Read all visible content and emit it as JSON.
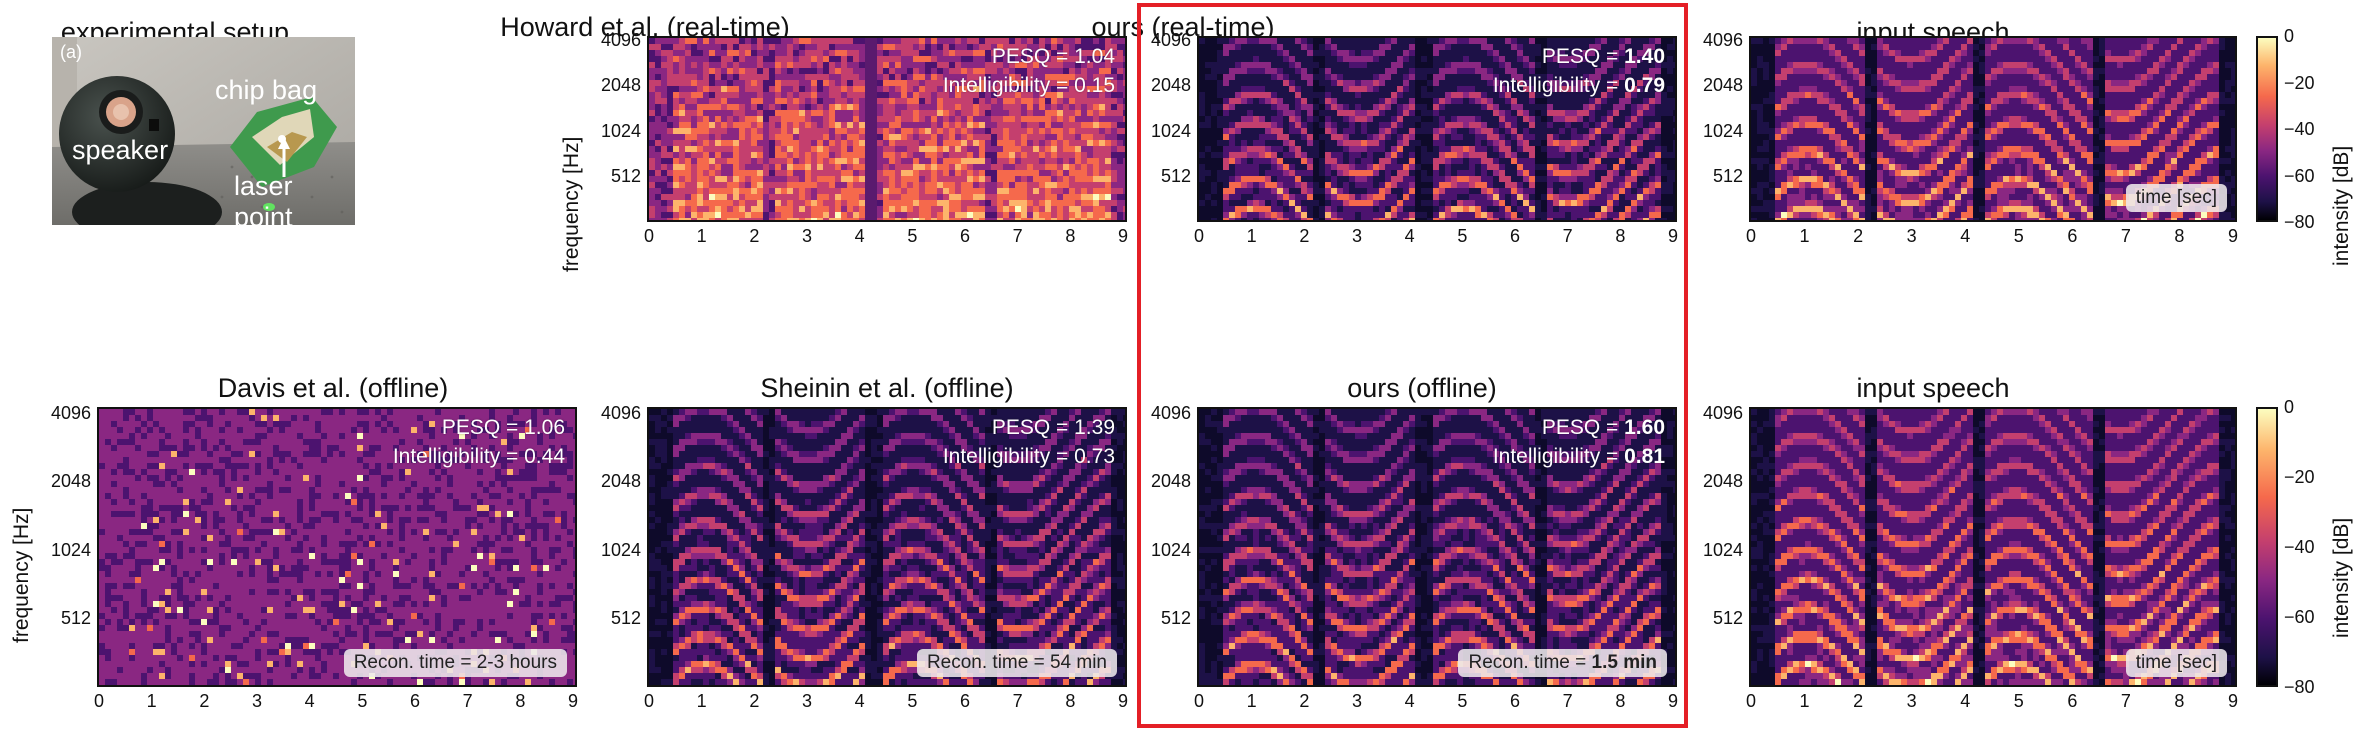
{
  "panels": {
    "setup": {
      "title": "experimental setup",
      "tag": "(a)",
      "labels": {
        "chip_bag": "chip bag",
        "speaker": "speaker",
        "laser_point": "laser point"
      }
    },
    "howard": {
      "title": "Howard et al. (real-time)",
      "pesq_label": "PESQ = ",
      "pesq": "1.04",
      "intel_label": "Intelligibility = ",
      "intel": "0.15"
    },
    "ours_rt": {
      "title": "ours (real-time)",
      "pesq_label": "PESQ = ",
      "pesq": "1.40",
      "intel_label": "Intelligibility = ",
      "intel": "0.79"
    },
    "input_top": {
      "title": "input speech",
      "badge": "time [sec]"
    },
    "davis": {
      "title": "Davis et al. (offline)",
      "pesq_label": "PESQ = ",
      "pesq": "1.06",
      "intel_label": "Intelligibility = ",
      "intel": "0.44",
      "recon_label": "Recon. time = ",
      "recon": "2-3 hours"
    },
    "sheinin": {
      "title": "Sheinin et al. (offline)",
      "pesq_label": "PESQ = ",
      "pesq": "1.39",
      "intel_label": "Intelligibility = ",
      "intel": "0.73",
      "recon_label": "Recon. time = ",
      "recon": "54 min"
    },
    "ours_off": {
      "title": "ours (offline)",
      "pesq_label": "PESQ = ",
      "pesq": "1.60",
      "intel_label": "Intelligibility = ",
      "intel": "0.81",
      "recon_label": "Recon. time = ",
      "recon": "1.5 min"
    },
    "input_bottom": {
      "title": "input speech",
      "badge": "time [sec]"
    }
  },
  "axes": {
    "ylabel": "frequency [Hz]",
    "yticks": [
      "4096",
      "2048",
      "1024",
      "512"
    ],
    "xticks": [
      "0",
      "1",
      "2",
      "3",
      "4",
      "5",
      "6",
      "7",
      "8",
      "9"
    ]
  },
  "colorbar": {
    "label": "intensity [dB]",
    "ticks": [
      "0",
      "−20",
      "−40",
      "−60",
      "−80"
    ],
    "range": [
      -80,
      0
    ],
    "colormap": "magma"
  },
  "highlight_color": "#e41f26"
}
